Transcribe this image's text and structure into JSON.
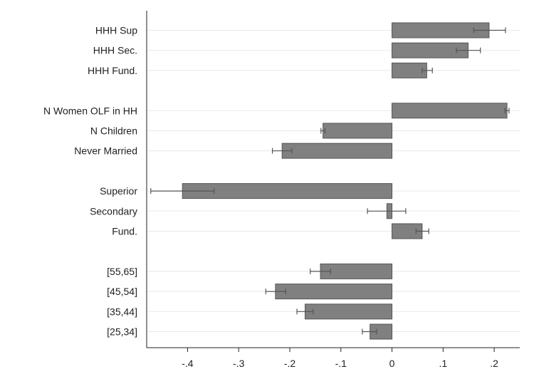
{
  "chart_data": {
    "type": "bar",
    "orientation": "horizontal",
    "title": "",
    "xlabel": "",
    "ylabel": "",
    "xlim": [
      -0.48,
      0.25
    ],
    "xticks": [
      -0.4,
      -0.3,
      -0.2,
      -0.1,
      0,
      0.1,
      0.2
    ],
    "xtick_labels": [
      "-.4",
      "-.3",
      "-.2",
      "-.1",
      "0",
      ".1",
      ".2"
    ],
    "grid": "horizontal",
    "bar_color": "#808080",
    "bar_edge_color": "#555555",
    "grid_color": "#e8e8e8",
    "error_bar_color": "#555555",
    "categories": [
      {
        "label": "HHH Sup",
        "value": 0.19,
        "ci": [
          0.16,
          0.222
        ]
      },
      {
        "label": "HHH Sec.",
        "value": 0.149,
        "ci": [
          0.126,
          0.173
        ]
      },
      {
        "label": "HHH Fund.",
        "value": 0.068,
        "ci": [
          0.059,
          0.079
        ]
      },
      {
        "label": "",
        "value": null,
        "ci": null
      },
      {
        "label": "N Women OLF in HH",
        "value": 0.225,
        "ci": [
          0.221,
          0.229
        ]
      },
      {
        "label": "N Children",
        "value": -0.135,
        "ci": [
          -0.139,
          -0.131
        ]
      },
      {
        "label": "Never Married",
        "value": -0.215,
        "ci": [
          -0.234,
          -0.196
        ]
      },
      {
        "label": "",
        "value": null,
        "ci": null
      },
      {
        "label": "Superior",
        "value": -0.41,
        "ci": [
          -0.472,
          -0.348
        ]
      },
      {
        "label": "Secondary",
        "value": -0.01,
        "ci": [
          -0.048,
          0.027
        ]
      },
      {
        "label": "Fund.",
        "value": 0.059,
        "ci": [
          0.047,
          0.072
        ]
      },
      {
        "label": "",
        "value": null,
        "ci": null
      },
      {
        "label": "[55,65]",
        "value": -0.14,
        "ci": [
          -0.16,
          -0.12
        ]
      },
      {
        "label": "[45,54]",
        "value": -0.228,
        "ci": [
          -0.247,
          -0.208
        ]
      },
      {
        "label": "[35,44]",
        "value": -0.17,
        "ci": [
          -0.186,
          -0.154
        ]
      },
      {
        "label": "[25,34]",
        "value": -0.043,
        "ci": [
          -0.058,
          -0.03
        ]
      }
    ]
  }
}
